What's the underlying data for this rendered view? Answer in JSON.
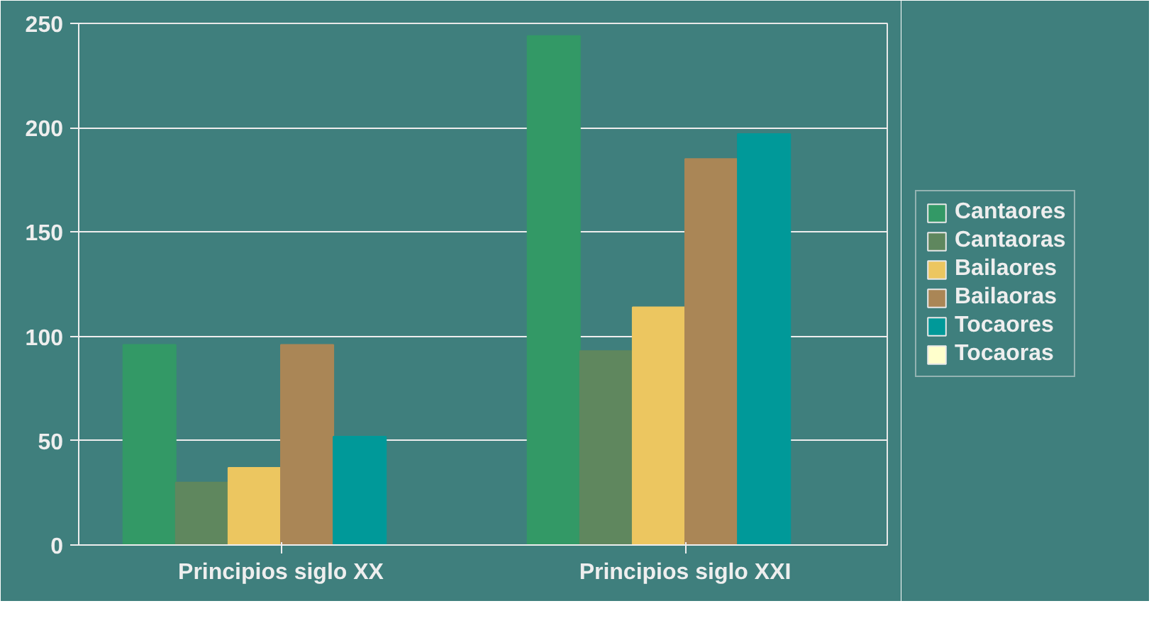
{
  "chart_data": {
    "type": "bar",
    "categories": [
      "Principios siglo XX",
      "Principios siglo XXI"
    ],
    "series": [
      {
        "name": "Cantaores",
        "color": "#339966",
        "values": [
          96,
          244
        ]
      },
      {
        "name": "Cantaoras",
        "color": "#5f875e",
        "values": [
          30,
          93
        ]
      },
      {
        "name": "Bailaores",
        "color": "#ecc660",
        "values": [
          37,
          114
        ]
      },
      {
        "name": "Bailaoras",
        "color": "#aa8656",
        "values": [
          96,
          185
        ]
      },
      {
        "name": "Tocaores",
        "color": "#009999",
        "values": [
          52,
          197
        ]
      },
      {
        "name": "Tocaoras",
        "color": "#ffffcc",
        "values": [
          0,
          0
        ]
      }
    ],
    "ylim": [
      0,
      250
    ],
    "yticks": [
      0,
      50,
      100,
      150,
      200,
      250
    ],
    "grid": "y",
    "legend": "right"
  }
}
